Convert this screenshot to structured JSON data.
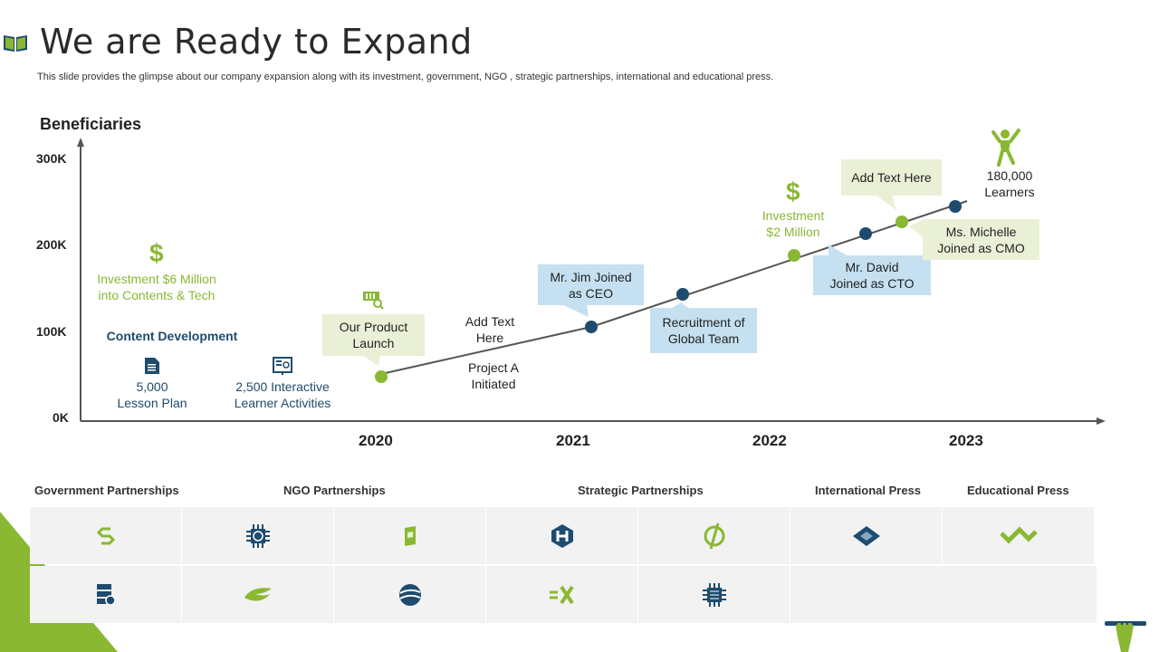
{
  "header": {
    "title": "We are Ready to Expand",
    "subtitle": "This slide provides the glimpse about our company expansion along with its investment, government, NGO ,  strategic partnerships, international and educational press."
  },
  "chart": {
    "y_axis_title": "Beneficiaries",
    "y_ticks": [
      "300K",
      "200K",
      "100K",
      "0K"
    ],
    "x_ticks": [
      "2020",
      "2021",
      "2022",
      "2023"
    ],
    "left_panel": {
      "investment_line1": "Investment $6 Million",
      "investment_line2": "into Contents & Tech",
      "content_dev": "Content Development",
      "lesson_line1": "5,000",
      "lesson_line2": "Lesson Plan",
      "activities_line1": "2,500 Interactive",
      "activities_line2": "Learner Activities"
    },
    "annotations": {
      "product_launch_line1": "Our Product",
      "product_launch_line2": "Launch",
      "add_text_line1": "Add Text",
      "add_text_line2": "Here",
      "project_line1": "Project A",
      "project_line2": "Initiated",
      "jim_line1": "Mr. Jim Joined",
      "jim_line2": "as CEO",
      "recruit_line1": "Recruitment of",
      "recruit_line2": "Global Team",
      "investment2_line1": "Investment",
      "investment2_line2": "$2 Million",
      "david_line1": "Mr. David",
      "david_line2": "Joined as CTO",
      "add_text2": "Add Text Here",
      "michelle_line1": "Ms. Michelle",
      "michelle_line2": "Joined as CMO",
      "learners_line1": "180,000",
      "learners_line2": "Learners",
      "dollar": "$"
    }
  },
  "partnerships": {
    "categories": [
      "Government Partnerships",
      "NGO Partnerships",
      "Strategic Partnerships",
      "International Press",
      "Educational Press"
    ],
    "row1_icons": [
      "logo-s-link-icon",
      "chip-globe-icon",
      "box-logo-icon",
      "hex-h-logo-icon",
      "circle-slash-logo-icon",
      "diamond-logo-icon",
      "zigzag-logo-icon"
    ],
    "row2_icons": [
      "server-icon",
      "wing-logo-icon",
      "sphere-logo-icon",
      "x-arrow-logo-icon",
      "chip-icon"
    ]
  },
  "colors": {
    "green": "#8ab833",
    "navy": "#1e4b6e",
    "callout_green": "#e9f0d6",
    "callout_blue": "#c5e0f0"
  }
}
